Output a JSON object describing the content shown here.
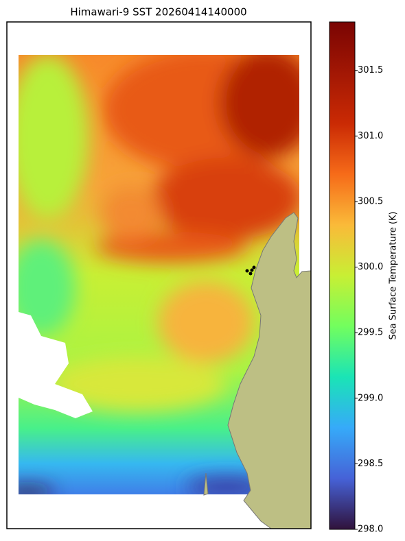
{
  "title": "Himawari-9 SST 20260414140000",
  "colorbar": {
    "label": "Sea Surface Temperature (K)",
    "lim": [
      298.0,
      301.87
    ],
    "ticks": [
      {
        "value": 298.0,
        "label": "298.0"
      },
      298.5,
      {
        "value": 299.0,
        "label": "299.0"
      },
      299.5,
      {
        "value": 300.0,
        "label": "300.0"
      },
      300.5,
      {
        "value": 301.0,
        "label": "301.0"
      },
      301.5
    ]
  }
}
